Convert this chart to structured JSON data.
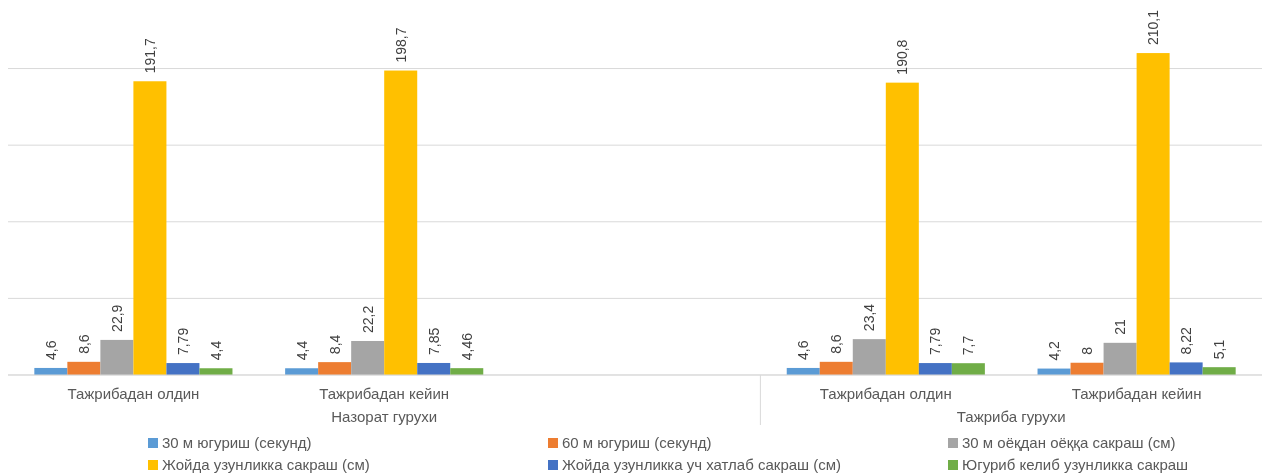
{
  "chart_data": {
    "type": "bar",
    "categories": [
      "Тажрибадан олдин",
      "Тажрибадан кейин",
      null,
      "Тажрибадан олдин",
      "Тажрибадан кейин"
    ],
    "series": [
      {
        "name": "30 м  югуриш (секунд)",
        "color": "#5b9bd5",
        "values": [
          4.6,
          4.4,
          null,
          4.6,
          4.2
        ],
        "value_labels": [
          "4,6",
          "4,4",
          null,
          "4,6",
          "4,2"
        ]
      },
      {
        "name": "60 м югуриш (секунд)",
        "color": "#ed7d31",
        "values": [
          8.6,
          8.4,
          null,
          8.6,
          8
        ],
        "value_labels": [
          "8,6",
          "8,4",
          null,
          "8,6",
          "8"
        ]
      },
      {
        "name": "30 м оёқдан оёққа сакраш (см)",
        "color": "#a5a5a5",
        "values": [
          22.9,
          22.2,
          null,
          23.4,
          21
        ],
        "value_labels": [
          "22,9",
          "22,2",
          null,
          "23,4",
          "21"
        ]
      },
      {
        "name": "Жойда узунликка сакраш (см)",
        "color": "#ffc000",
        "values": [
          191.7,
          198.7,
          null,
          190.8,
          210.1
        ],
        "value_labels": [
          "191,7",
          "198,7",
          null,
          "190,8",
          "210,1"
        ]
      },
      {
        "name": "Жойда узунликка  уч хатлаб сакраш (см)",
        "color": "#4472c4",
        "values": [
          7.79,
          7.85,
          null,
          7.79,
          8.22
        ],
        "value_labels": [
          "7,79",
          "7,85",
          null,
          "7,79",
          "8,22"
        ]
      },
      {
        "name": "Югуриб келиб узунликка сакраш",
        "color": "#70ad47",
        "values": [
          4.4,
          4.46,
          null,
          7.7,
          5.1
        ],
        "value_labels": [
          "4,4",
          "4,46",
          null,
          "7,7",
          "5,1"
        ]
      }
    ],
    "annotations": [
      "Назорат гурухи",
      "Тажриба гурухи"
    ],
    "yticks": [
      0,
      50,
      100,
      150,
      200
    ],
    "grid": "y",
    "tick_labels": "x",
    "legend": "bottom"
  }
}
